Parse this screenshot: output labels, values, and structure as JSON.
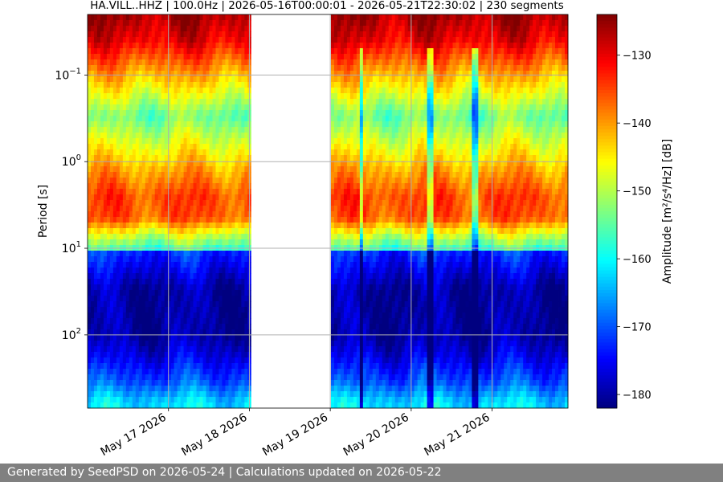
{
  "chart_data": {
    "type": "heatmap",
    "title": "HA.VILL..HHZ | 100.0Hz | 2026-05-16T00:00:01 - 2026-05-21T22:30:02 | 230 segments",
    "ylabel": "Period [s]",
    "colorbar_label": "Amplitude [m²/s⁴/Hz] [dB]",
    "y_scale": "log",
    "y_inverted": true,
    "y_range_s": [
      0.02,
      700
    ],
    "y_ticks": [
      {
        "value": 0.1,
        "base": "10",
        "exp": "−1"
      },
      {
        "value": 1,
        "base": "10",
        "exp": "0"
      },
      {
        "value": 10,
        "base": "10",
        "exp": "1"
      },
      {
        "value": 100,
        "base": "10",
        "exp": "2"
      }
    ],
    "x_range": [
      "2026-05-16T00:00:01",
      "2026-05-21T22:30:02"
    ],
    "x_ticks": [
      {
        "date": "2026-05-17",
        "label": "May 17 2026"
      },
      {
        "date": "2026-05-18",
        "label": "May 18 2026"
      },
      {
        "date": "2026-05-19",
        "label": "May 19 2026"
      },
      {
        "date": "2026-05-20",
        "label": "May 20 2026"
      },
      {
        "date": "2026-05-21",
        "label": "May 21 2026"
      }
    ],
    "data_gap": [
      "2026-05-18T00:00:00",
      "2026-05-19T00:00:00"
    ],
    "colorbar_range_db": [
      -182,
      -124
    ],
    "colorbar_ticks": [
      -130,
      -140,
      -150,
      -160,
      -170,
      -180
    ],
    "colormap": "jet",
    "grid": true,
    "period_profile": [
      {
        "period_s": 0.02,
        "db": -126
      },
      {
        "period_s": 0.04,
        "db": -130
      },
      {
        "period_s": 0.1,
        "db": -141
      },
      {
        "period_s": 0.3,
        "db": -154
      },
      {
        "period_s": 1.2,
        "db": -141
      },
      {
        "period_s": 2.5,
        "db": -135
      },
      {
        "period_s": 4.5,
        "db": -136
      },
      {
        "period_s": 7,
        "db": -148
      },
      {
        "period_s": 10,
        "db": -156
      },
      {
        "period_s": 11,
        "db": -172
      },
      {
        "period_s": 30,
        "db": -180
      },
      {
        "period_s": 100,
        "db": -180
      },
      {
        "period_s": 180,
        "db": -176
      },
      {
        "period_s": 350,
        "db": -170
      },
      {
        "period_s": 600,
        "db": -162
      }
    ],
    "dark_streaks": [
      "2026-05-19T09:00:00",
      "2026-05-20T05:30:00",
      "2026-05-20T19:00:00"
    ]
  },
  "footer": {
    "text": "Generated by SeedPSD on 2026-05-24 | Calculations updated on 2026-05-22"
  }
}
